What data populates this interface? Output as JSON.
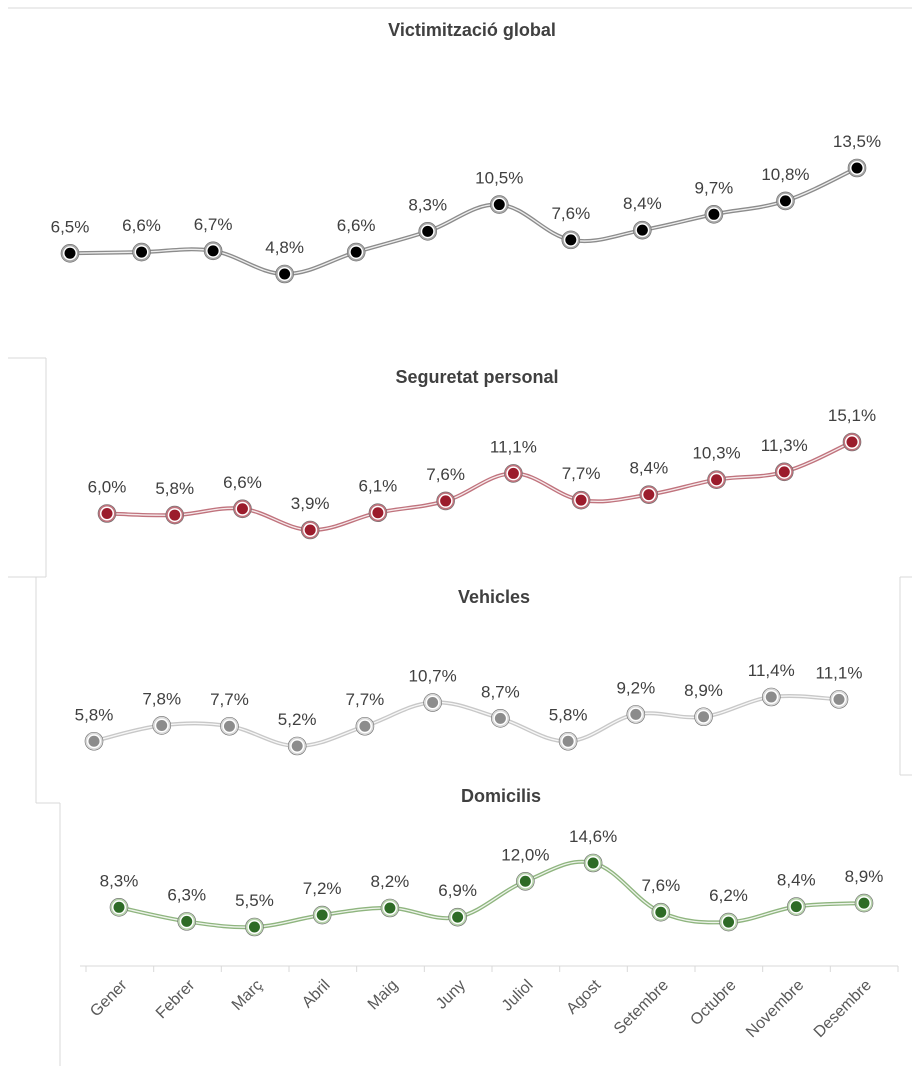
{
  "months": [
    "Gener",
    "Febrer",
    "Març",
    "Abril",
    "Maig",
    "Juny",
    "Juliol",
    "Agost",
    "Setembre",
    "Octubre",
    "Novembre",
    "Desembre"
  ],
  "chart_data": [
    {
      "type": "line",
      "title": "Victimització global",
      "categories": [
        "Gener",
        "Febrer",
        "Març",
        "Abril",
        "Maig",
        "Juny",
        "Juliol",
        "Agost",
        "Setembre",
        "Octubre",
        "Novembre",
        "Desembre"
      ],
      "values": [
        6.5,
        6.6,
        6.7,
        4.8,
        6.6,
        8.3,
        10.5,
        7.6,
        8.4,
        9.7,
        10.8,
        13.5
      ],
      "labels": [
        "6,5%",
        "6,6%",
        "6,7%",
        "4,8%",
        "6,6%",
        "8,3%",
        "10,5%",
        "7,6%",
        "8,4%",
        "9,7%",
        "10,8%",
        "13,5%"
      ],
      "line_color": "#8c8c8c",
      "marker_fill": "#000000",
      "marker_ring": "#a6a6a6",
      "smooth": true
    },
    {
      "type": "line",
      "title": "Seguretat personal",
      "categories": [
        "Gener",
        "Febrer",
        "Març",
        "Abril",
        "Maig",
        "Juny",
        "Juliol",
        "Agost",
        "Setembre",
        "Octubre",
        "Novembre",
        "Desembre"
      ],
      "values": [
        6.0,
        5.8,
        6.6,
        3.9,
        6.1,
        7.6,
        11.1,
        7.7,
        8.4,
        10.3,
        11.3,
        15.1
      ],
      "labels": [
        "6,0%",
        "5,8%",
        "6,6%",
        "3,9%",
        "6,1%",
        "7,6%",
        "11,1%",
        "7,7%",
        "8,4%",
        "10,3%",
        "11,3%",
        "15,1%"
      ],
      "line_color": "#c0737d",
      "marker_fill": "#9b1c2c",
      "marker_ring": "#c0737d",
      "smooth": true
    },
    {
      "type": "line",
      "title": "Vehicles",
      "categories": [
        "Gener",
        "Febrer",
        "Març",
        "Abril",
        "Maig",
        "Juny",
        "Juliol",
        "Agost",
        "Setembre",
        "Octubre",
        "Novembre",
        "Desembre"
      ],
      "values": [
        5.8,
        7.8,
        7.7,
        5.2,
        7.7,
        10.7,
        8.7,
        5.8,
        9.2,
        8.9,
        11.4,
        11.1
      ],
      "labels": [
        "5,8%",
        "7,8%",
        "7,7%",
        "5,2%",
        "7,7%",
        "10,7%",
        "8,7%",
        "5,8%",
        "9,2%",
        "8,9%",
        "11,4%",
        "11,1%"
      ],
      "line_color": "#c8c8c8",
      "marker_fill": "#8c8c8c",
      "marker_ring": "#d9d9d9",
      "smooth": true
    },
    {
      "type": "line",
      "title": "Domicilis",
      "categories": [
        "Gener",
        "Febrer",
        "Març",
        "Abril",
        "Maig",
        "Juny",
        "Juliol",
        "Agost",
        "Setembre",
        "Octubre",
        "Novembre",
        "Desembre"
      ],
      "values": [
        8.3,
        6.3,
        5.5,
        7.2,
        8.2,
        6.9,
        12.0,
        14.6,
        7.6,
        6.2,
        8.4,
        8.9
      ],
      "labels": [
        "8,3%",
        "6,3%",
        "5,5%",
        "7,2%",
        "8,2%",
        "6,9%",
        "12,0%",
        "14,6%",
        "7,6%",
        "6,2%",
        "8,4%",
        "8,9%"
      ],
      "line_color": "#8fb57f",
      "marker_fill": "#2e6b26",
      "marker_ring": "#b8d3ad",
      "smooth": true
    }
  ]
}
